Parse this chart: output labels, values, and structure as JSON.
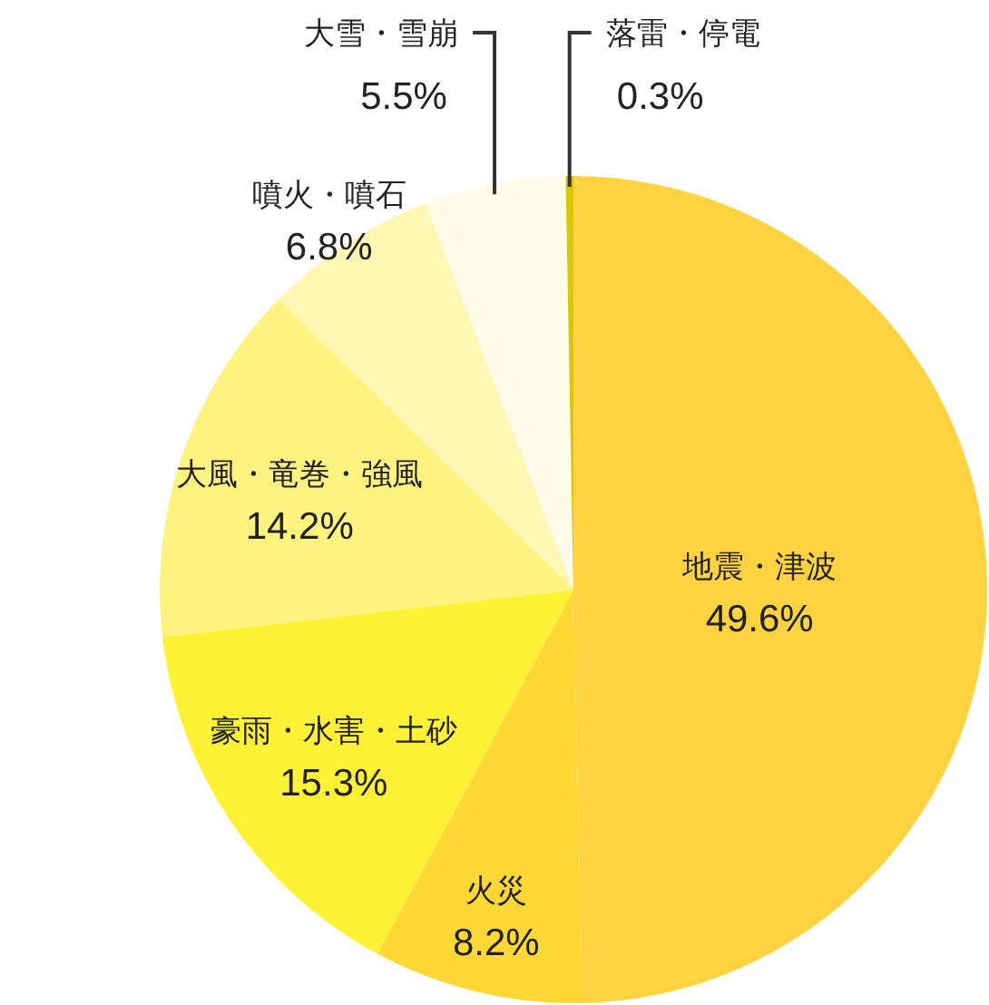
{
  "chart_data": {
    "type": "pie",
    "categories": [
      "地震・津波",
      "火災",
      "豪雨・水害・土砂",
      "大風・竜巻・強風",
      "噴火・噴石",
      "大雪・雪崩",
      "落雷・停電"
    ],
    "values": [
      49.6,
      8.2,
      15.3,
      14.2,
      6.8,
      5.5,
      0.3
    ],
    "colors": [
      "#ffd340",
      "#fdd835",
      "#fff235",
      "#fff380",
      "#fff7b3",
      "#fffbe8",
      "#d9c800"
    ],
    "value_labels": [
      "49.6%",
      "8.2%",
      "15.3%",
      "14.2%",
      "6.8%",
      "5.5%",
      "0.3%"
    ]
  }
}
